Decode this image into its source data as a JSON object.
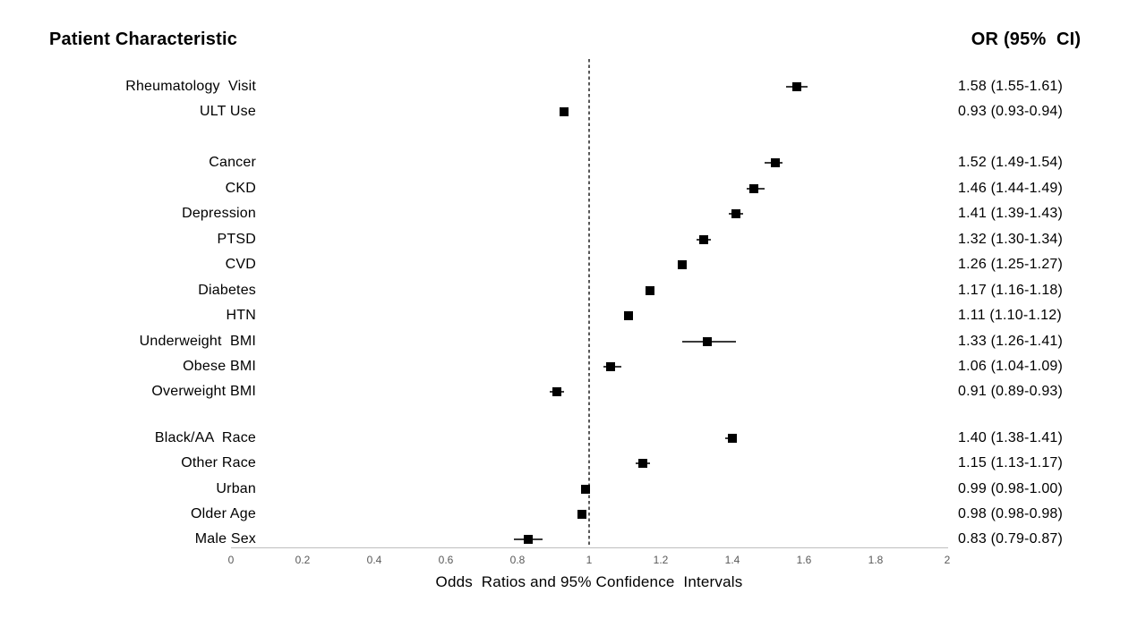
{
  "header": {
    "left_title": "Patient Characteristic",
    "right_title": "OR (95%  CI)"
  },
  "chart_data": {
    "type": "scatter",
    "subtype": "forest-plot",
    "title": "",
    "xlabel": "Odds  Ratios and 95% Confidence  Intervals",
    "ylabel": "",
    "xlim": [
      0,
      2
    ],
    "grid": false,
    "legend": false,
    "reference_line_x": 1,
    "x_ticks": [
      {
        "value": 0,
        "label": "0"
      },
      {
        "value": 0.2,
        "label": "0.2"
      },
      {
        "value": 0.4,
        "label": "0.4"
      },
      {
        "value": 0.6,
        "label": "0.6"
      },
      {
        "value": 0.8,
        "label": "0.8"
      },
      {
        "value": 1,
        "label": "1"
      },
      {
        "value": 1.2,
        "label": "1.2"
      },
      {
        "value": 1.4,
        "label": "1.4"
      },
      {
        "value": 1.6,
        "label": "1.6"
      },
      {
        "value": 1.8,
        "label": "1.8"
      },
      {
        "value": 2,
        "label": "2"
      }
    ],
    "groups": [
      {
        "rows": [
          {
            "label": "Rheumatology  Visit",
            "or": 1.58,
            "ci_low": 1.55,
            "ci_high": 1.61,
            "or_text": "1.58 (1.55-1.61)"
          },
          {
            "label": "ULT Use",
            "or": 0.93,
            "ci_low": 0.93,
            "ci_high": 0.94,
            "or_text": "0.93 (0.93-0.94)"
          }
        ]
      },
      {
        "rows": [
          {
            "label": "Cancer",
            "or": 1.52,
            "ci_low": 1.49,
            "ci_high": 1.54,
            "or_text": "1.52 (1.49-1.54)"
          },
          {
            "label": "CKD",
            "or": 1.46,
            "ci_low": 1.44,
            "ci_high": 1.49,
            "or_text": "1.46 (1.44-1.49)"
          },
          {
            "label": "Depression",
            "or": 1.41,
            "ci_low": 1.39,
            "ci_high": 1.43,
            "or_text": "1.41 (1.39-1.43)"
          },
          {
            "label": "PTSD",
            "or": 1.32,
            "ci_low": 1.3,
            "ci_high": 1.34,
            "or_text": "1.32 (1.30-1.34)"
          },
          {
            "label": "CVD",
            "or": 1.26,
            "ci_low": 1.25,
            "ci_high": 1.27,
            "or_text": "1.26 (1.25-1.27)"
          },
          {
            "label": "Diabetes",
            "or": 1.17,
            "ci_low": 1.16,
            "ci_high": 1.18,
            "or_text": "1.17 (1.16-1.18)"
          },
          {
            "label": "HTN",
            "or": 1.11,
            "ci_low": 1.1,
            "ci_high": 1.12,
            "or_text": "1.11 (1.10-1.12)"
          },
          {
            "label": "Underweight  BMI",
            "or": 1.33,
            "ci_low": 1.26,
            "ci_high": 1.41,
            "or_text": "1.33 (1.26-1.41)"
          },
          {
            "label": "Obese BMI",
            "or": 1.06,
            "ci_low": 1.04,
            "ci_high": 1.09,
            "or_text": "1.06 (1.04-1.09)"
          },
          {
            "label": "Overweight BMI",
            "or": 0.91,
            "ci_low": 0.89,
            "ci_high": 0.93,
            "or_text": "0.91 (0.89-0.93)"
          }
        ]
      },
      {
        "rows": [
          {
            "label": "Black/AA  Race",
            "or": 1.4,
            "ci_low": 1.38,
            "ci_high": 1.41,
            "or_text": "1.40 (1.38-1.41)"
          },
          {
            "label": "Other Race",
            "or": 1.15,
            "ci_low": 1.13,
            "ci_high": 1.17,
            "or_text": "1.15 (1.13-1.17)"
          },
          {
            "label": "Urban",
            "or": 0.99,
            "ci_low": 0.98,
            "ci_high": 1.0,
            "or_text": "0.99 (0.98-1.00)"
          },
          {
            "label": "Older Age",
            "or": 0.98,
            "ci_low": 0.98,
            "ci_high": 0.98,
            "or_text": "0.98 (0.98-0.98)"
          },
          {
            "label": "Male Sex",
            "or": 0.83,
            "ci_low": 0.79,
            "ci_high": 0.87,
            "or_text": "0.83 (0.79-0.87)"
          }
        ]
      }
    ]
  },
  "colors": {
    "marker": "#000000",
    "ci_line": "#3a3a3a",
    "reference_line": "#595959",
    "axis_line": "#bfbfbf",
    "tick_text": "#595959",
    "text": "#000000",
    "background": "#ffffff"
  }
}
